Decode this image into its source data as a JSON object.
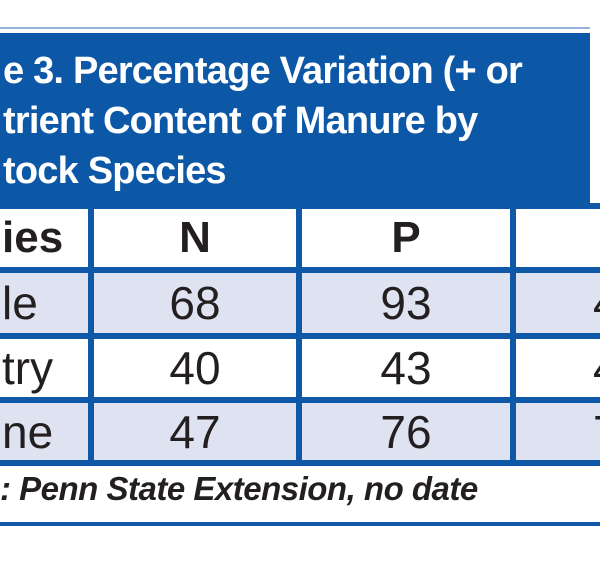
{
  "banner": {
    "title_lines": [
      "e 3. Percentage Variation (+ or",
      "trient Content of Manure by",
      "tock Species"
    ]
  },
  "table": {
    "header": {
      "species": "ies",
      "n": "N",
      "p": "P",
      "col4": ""
    },
    "rows": [
      {
        "species": "le",
        "n": "68",
        "p": "93",
        "col4_partial": "4"
      },
      {
        "species": "try",
        "n": "40",
        "p": "43",
        "col4_partial": "4"
      },
      {
        "species": "ne",
        "n": "47",
        "p": "76",
        "col4_partial": "7"
      }
    ]
  },
  "footer": {
    "source_note": ": Penn State Extension, no date"
  },
  "colors": {
    "banner_blue": "#0d57a7",
    "border_blue": "#0f58a8",
    "row_lavender": "#dfe2f0",
    "text_dark": "#231f20",
    "title_text": "#ffffff"
  },
  "chart_data": {
    "type": "table",
    "title_visible": "e 3. Percentage Variation (+ or / trient Content of Manure by / tock Species",
    "columns_visible": [
      "ies",
      "N",
      "P",
      "(cropped at right edge)"
    ],
    "rows_visible": [
      [
        "le",
        68,
        93,
        "4 (cropped)"
      ],
      [
        "try",
        40,
        43,
        "4 (cropped)"
      ],
      [
        "ne",
        47,
        76,
        "7 (cropped)"
      ]
    ],
    "source_visible": ": Penn State Extension, no date",
    "layout_hints": "table cropped on left and right; header row white; data rows alternate lavender/white; thick blue grid borders"
  }
}
